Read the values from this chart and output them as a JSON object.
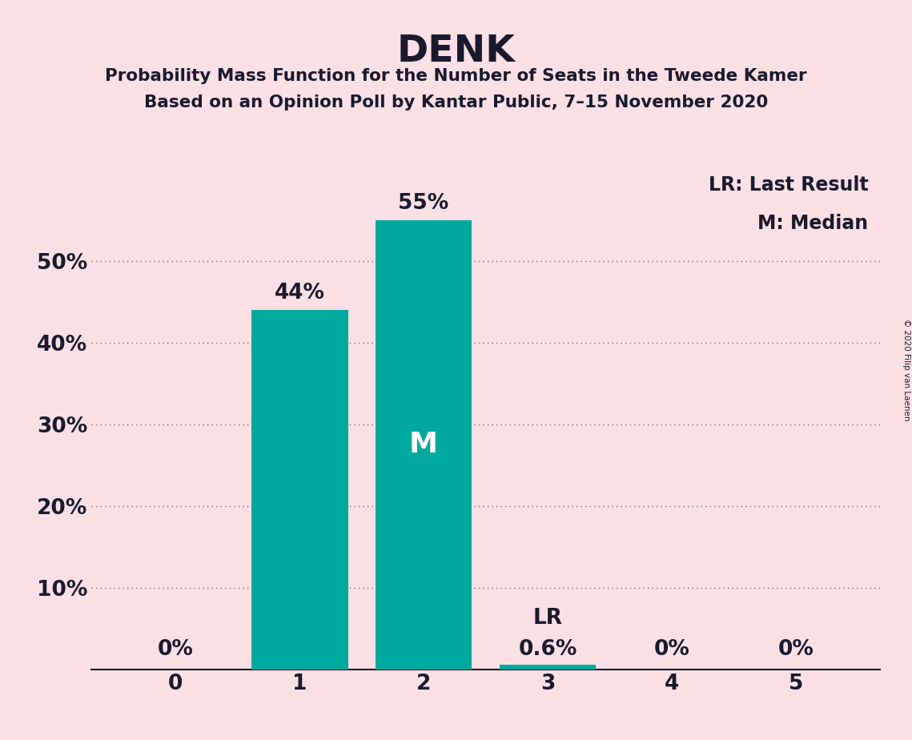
{
  "title": "DENK",
  "subtitle1": "Probability Mass Function for the Number of Seats in the Tweede Kamer",
  "subtitle2": "Based on an Opinion Poll by Kantar Public, 7–15 November 2020",
  "copyright": "© 2020 Filip van Laenen",
  "categories": [
    0,
    1,
    2,
    3,
    4,
    5
  ],
  "values": [
    0.0,
    0.44,
    0.55,
    0.006,
    0.0,
    0.0
  ],
  "labels": [
    "0%",
    "44%",
    "55%",
    "0.6%",
    "0%",
    "0%"
  ],
  "bar_color": "#00A99D",
  "background_color": "#FAE0E4",
  "text_color": "#1a1a2e",
  "median_bar": 2,
  "lr_bar": 3,
  "legend_lr": "LR: Last Result",
  "legend_m": "M: Median",
  "ylim": [
    0,
    0.62
  ],
  "yticks": [
    0.0,
    0.1,
    0.2,
    0.3,
    0.4,
    0.5
  ],
  "ytick_labels": [
    "",
    "10%",
    "20%",
    "30%",
    "40%",
    "50%"
  ],
  "grid_color": "#1a1a2e",
  "bar_width": 0.78
}
